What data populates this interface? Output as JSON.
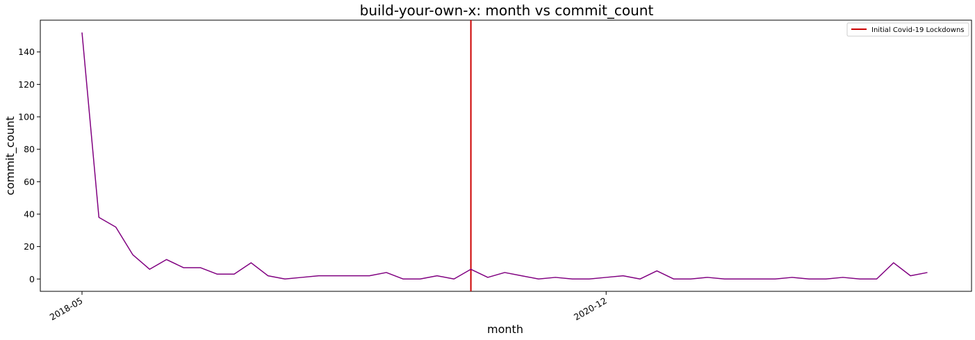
{
  "chart_data": {
    "type": "line",
    "title": "build-your-own-x: month vs commit_count",
    "xlabel": "month",
    "ylabel": "commit_count",
    "x_start": "2018-05",
    "x_tick_labels": [
      "2018-05",
      "2020-12"
    ],
    "ylim": [
      -7.6,
      159.6
    ],
    "y_ticks": [
      0,
      20,
      40,
      60,
      80,
      100,
      120,
      140
    ],
    "grid": false,
    "series": [
      {
        "color": "#800080",
        "x": [
          "2018-05",
          "2018-06",
          "2018-07",
          "2018-08",
          "2018-09",
          "2018-10",
          "2018-11",
          "2018-12",
          "2019-01",
          "2019-02",
          "2019-03",
          "2019-04",
          "2019-05",
          "2019-06",
          "2019-07",
          "2019-08",
          "2019-09",
          "2019-10",
          "2019-11",
          "2019-12",
          "2020-01",
          "2020-02",
          "2020-03",
          "2020-04",
          "2020-05",
          "2020-06",
          "2020-07",
          "2020-08",
          "2020-09",
          "2020-10",
          "2020-11",
          "2020-12",
          "2021-01",
          "2021-02",
          "2021-03",
          "2021-04",
          "2021-05",
          "2021-06",
          "2021-07",
          "2021-08",
          "2021-09",
          "2021-10",
          "2021-11",
          "2021-12",
          "2022-01",
          "2022-02",
          "2022-03",
          "2022-04",
          "2022-05",
          "2022-06",
          "2022-07"
        ],
        "values": [
          152,
          38,
          32,
          15,
          6,
          12,
          7,
          7,
          3,
          3,
          10,
          2,
          0,
          1,
          2,
          2,
          2,
          2,
          4,
          0,
          0,
          2,
          0,
          6,
          1,
          4,
          2,
          0,
          1,
          0,
          0,
          1,
          2,
          0,
          5,
          0,
          0,
          1,
          0,
          0,
          0,
          0,
          1,
          0,
          0,
          1,
          0,
          0,
          10,
          2,
          4
        ]
      }
    ],
    "annotations": [
      {
        "type": "vline",
        "x": "2020-04",
        "color": "#cc0000",
        "label": "Initial Covid-19 Lockdowns"
      }
    ],
    "legend": {
      "placement": "top-right",
      "entries": [
        "Initial Covid-19 Lockdowns"
      ]
    }
  }
}
